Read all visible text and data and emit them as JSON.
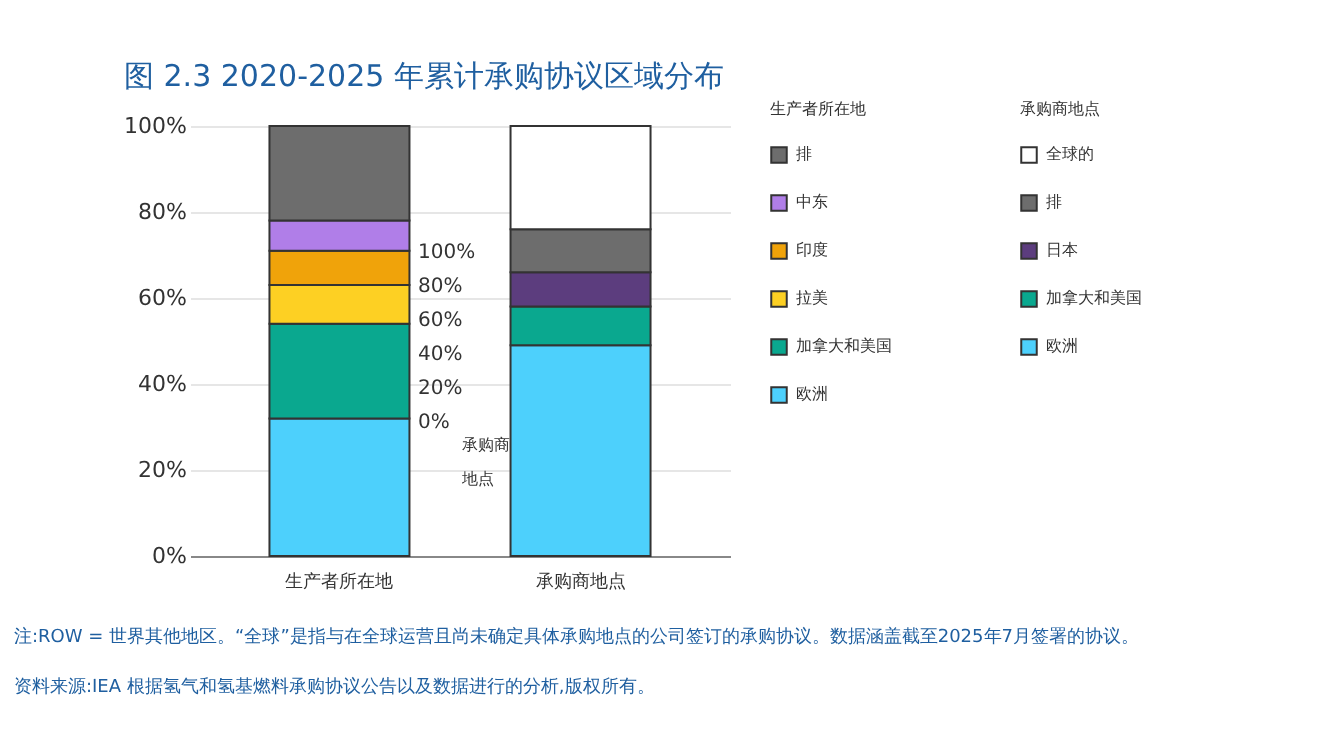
{
  "chart_data": {
    "type": "bar",
    "stacked": true,
    "title": "图 2.3 2020-2025 年累计承购协议区域分布",
    "categories": [
      "生产者所在地",
      "承购商地点"
    ],
    "series": [
      {
        "name": "欧洲",
        "color": "#4dd0fc",
        "values": [
          32,
          null
        ]
      },
      {
        "name": "加拿大和美国",
        "color": "#0aa88f",
        "values": [
          22,
          null
        ]
      },
      {
        "name": "拉美",
        "color": "#fdd023",
        "values": [
          9,
          null
        ]
      },
      {
        "name": "印度",
        "color": "#f0a30a",
        "values": [
          8,
          null
        ]
      },
      {
        "name": "中东",
        "color": "#b07ee8",
        "values": [
          7,
          null
        ]
      },
      {
        "name": "排",
        "color": "#6d6d6d",
        "values": [
          22,
          null
        ]
      },
      {
        "name": "欧洲",
        "color": "#4dd0fc",
        "values": [
          null,
          49
        ]
      },
      {
        "name": "加拿大和美国",
        "color": "#0aa88f",
        "values": [
          null,
          9
        ]
      },
      {
        "name": "日本",
        "color": "#5c3d7e",
        "values": [
          null,
          8
        ]
      },
      {
        "name": "排",
        "color": "#6d6d6d",
        "values": [
          null,
          10
        ]
      },
      {
        "name": "全球的",
        "color": "#ffffff",
        "values": [
          null,
          24
        ]
      }
    ],
    "ylim": [
      0,
      100
    ],
    "yticks": [
      {
        "value": 0,
        "label": "0%"
      },
      {
        "value": 20,
        "label": "20%"
      },
      {
        "value": 40,
        "label": "40%"
      },
      {
        "value": 60,
        "label": "60%"
      },
      {
        "value": 80,
        "label": "80%"
      },
      {
        "value": 100,
        "label": "100%"
      }
    ],
    "grid": "y",
    "legend": "right",
    "annotations": [
      "100%",
      "80%",
      "60%",
      "40%",
      "20%",
      "0%",
      "承购商地点",
      "注:ROW = 世界其他地区。“全球”是指与在全球运营且尚未确定具体承购地点的公司签订的承购协议。数据涵盖截至2025年7月签署的协议。",
      "资料来源:IEA 根据氢气和氢基燃料承购协议公告以及数据进行的分析,版权所有。"
    ]
  }
}
